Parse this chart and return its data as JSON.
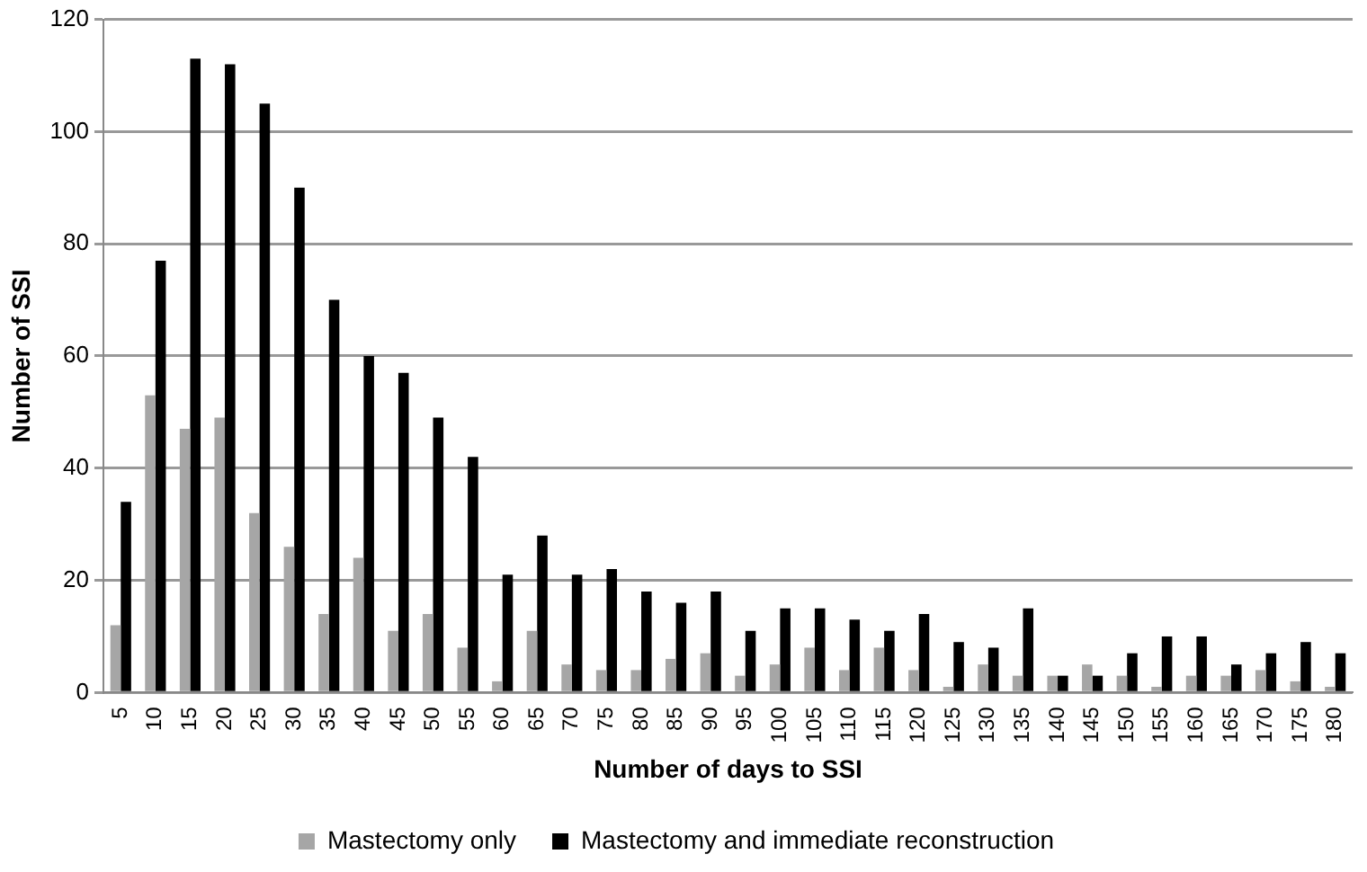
{
  "chart_data": {
    "type": "bar",
    "xlabel": "Number of days to SSI",
    "ylabel": "Number of SSI",
    "categories": [
      "5",
      "10",
      "15",
      "20",
      "25",
      "30",
      "35",
      "40",
      "45",
      "50",
      "55",
      "60",
      "65",
      "70",
      "75",
      "80",
      "85",
      "90",
      "95",
      "100",
      "105",
      "110",
      "115",
      "120",
      "125",
      "130",
      "135",
      "140",
      "145",
      "150",
      "155",
      "160",
      "165",
      "170",
      "175",
      "180"
    ],
    "series": [
      {
        "name": "Mastectomy only",
        "color": "#a6a6a6",
        "values": [
          12,
          53,
          47,
          49,
          32,
          26,
          14,
          24,
          11,
          14,
          8,
          2,
          11,
          5,
          4,
          4,
          6,
          7,
          3,
          5,
          8,
          4,
          8,
          4,
          1,
          5,
          3,
          3,
          5,
          3,
          1,
          3,
          3,
          4,
          2,
          1
        ]
      },
      {
        "name": "Mastectomy and immediate reconstruction",
        "color": "#000000",
        "values": [
          34,
          77,
          113,
          112,
          105,
          90,
          70,
          60,
          57,
          49,
          42,
          21,
          28,
          21,
          22,
          18,
          16,
          18,
          11,
          15,
          15,
          13,
          11,
          14,
          9,
          8,
          15,
          3,
          3,
          7,
          10,
          10,
          5,
          7,
          9,
          7
        ]
      }
    ],
    "ylim": [
      0,
      120
    ],
    "yticks": [
      0,
      20,
      40,
      60,
      80,
      100,
      120
    ],
    "grid": "y",
    "legend": "bottom"
  }
}
